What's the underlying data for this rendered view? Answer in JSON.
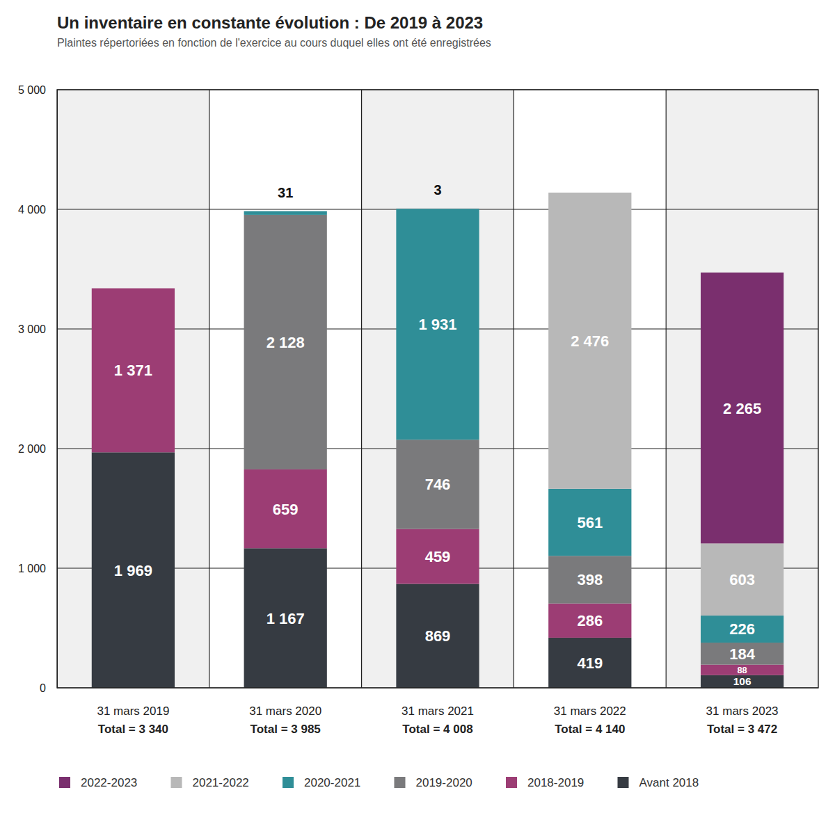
{
  "chart_data": {
    "type": "bar",
    "title": "Un inventaire en constante évolution : De 2019 à 2023",
    "subtitle": "Plaintes répertoriées en fonction de l'exercice au cours duquel elles ont été enregistrées",
    "categories": [
      "31 mars 2019\nTotal = 3 340",
      "31 mars 2020\nTotal = 3 985",
      "31 mars 2021\nTotal = 4 008",
      "31 mars 2022\nTotal = 4 140",
      "31 mars 2023\nTotal = 3 472"
    ],
    "series": [
      {
        "name": "2022-2023",
        "color": "#7a2f6e",
        "values": [
          null,
          null,
          null,
          null,
          2265
        ],
        "value_labels": [
          null,
          null,
          null,
          null,
          "2 265"
        ]
      },
      {
        "name": "2021-2022",
        "color": "#b8b8b8",
        "values": [
          null,
          null,
          3,
          2476,
          603
        ],
        "value_labels": [
          null,
          null,
          null,
          "2 476",
          null
        ]
      },
      {
        "name": "2020-2021",
        "color": "#2f8e97",
        "values": [
          null,
          31,
          1931,
          561,
          226
        ],
        "value_labels": [
          null,
          null,
          "1 931",
          null,
          null
        ]
      },
      {
        "name": "2019-2020",
        "color": "#7a7a7c",
        "values": [
          null,
          2128,
          746,
          398,
          184
        ],
        "value_labels": [
          null,
          "2 128",
          null,
          null,
          null
        ]
      },
      {
        "name": "2018-2019",
        "color": "#9c3d74",
        "values": [
          1371,
          659,
          459,
          286,
          88
        ],
        "value_labels": [
          "1 371",
          null,
          null,
          null,
          null
        ]
      },
      {
        "name": "Avant 2018",
        "color": "#363b42",
        "values": [
          1969,
          1167,
          869,
          419,
          106
        ],
        "value_labels": [
          "1 969",
          "1 167",
          null,
          null,
          null
        ]
      }
    ],
    "ylim": [
      0,
      5000
    ],
    "yticks": [
      0,
      {
        "value": 1000,
        "label": "1 000"
      },
      {
        "value": 2000,
        "label": "2 000"
      },
      {
        "value": 3000,
        "label": "3 000"
      },
      {
        "value": 4000,
        "label": "4 000"
      },
      {
        "value": 5000,
        "label": "5 000"
      }
    ],
    "stacked": true,
    "data_labels": true,
    "grid": true,
    "legend": "bottom"
  }
}
